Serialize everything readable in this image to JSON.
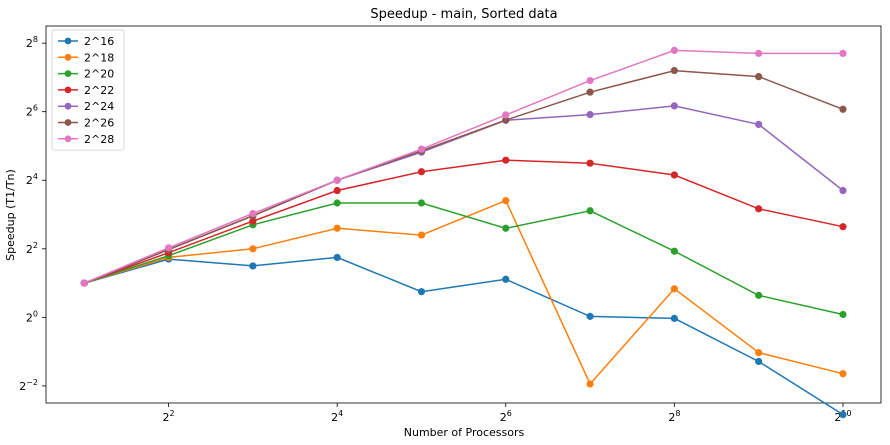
{
  "chart_data": {
    "type": "line",
    "title": "Speedup - main, Sorted data",
    "xlabel": "Number of Processors",
    "ylabel": "Speedup (T1/Tn)",
    "x_scale": "log2",
    "y_scale": "log2",
    "x": [
      2,
      4,
      8,
      16,
      32,
      64,
      128,
      256,
      512,
      1024
    ],
    "xlim": [
      1.46,
      1400
    ],
    "ylim": [
      0.177,
      362
    ],
    "x_ticks": [
      {
        "value": 4,
        "base": "2",
        "exp": "2"
      },
      {
        "value": 16,
        "base": "2",
        "exp": "4"
      },
      {
        "value": 64,
        "base": "2",
        "exp": "6"
      },
      {
        "value": 256,
        "base": "2",
        "exp": "8"
      },
      {
        "value": 1024,
        "base": "2",
        "exp": "10"
      }
    ],
    "y_ticks": [
      {
        "value": 0.25,
        "base": "2",
        "exp": "−2"
      },
      {
        "value": 1,
        "base": "2",
        "exp": "0"
      },
      {
        "value": 4,
        "base": "2",
        "exp": "2"
      },
      {
        "value": 16,
        "base": "2",
        "exp": "4"
      },
      {
        "value": 64,
        "base": "2",
        "exp": "6"
      },
      {
        "value": 256,
        "base": "2",
        "exp": "8"
      }
    ],
    "grid": false,
    "legend_position": "top-left",
    "series": [
      {
        "name": "2^16",
        "color": "#1f77b4",
        "values": [
          2.0,
          3.25,
          2.83,
          3.36,
          1.68,
          2.16,
          1.02,
          0.98,
          0.41,
          0.14
        ]
      },
      {
        "name": "2^18",
        "color": "#ff7f0e",
        "values": [
          2.0,
          3.36,
          4.0,
          6.06,
          5.28,
          10.6,
          0.26,
          1.78,
          0.49,
          0.32
        ]
      },
      {
        "name": "2^20",
        "color": "#2ca02c",
        "values": [
          2.0,
          3.48,
          6.5,
          10.1,
          10.1,
          6.06,
          8.63,
          3.81,
          1.56,
          1.06
        ]
      },
      {
        "name": "2^22",
        "color": "#d62728",
        "values": [
          2.0,
          3.7,
          7.0,
          13.0,
          19.0,
          24.0,
          22.6,
          17.8,
          8.98,
          6.25
        ]
      },
      {
        "name": "2^24",
        "color": "#9467bd",
        "values": [
          2.0,
          3.94,
          7.8,
          16.0,
          28.2,
          53.8,
          60.3,
          72.0,
          49.5,
          13.0
        ]
      },
      {
        "name": "2^26",
        "color": "#8c564b",
        "values": [
          2.0,
          3.94,
          7.8,
          16.0,
          29.0,
          54.0,
          95.0,
          147.0,
          130.0,
          67.2
        ]
      },
      {
        "name": "2^28",
        "color": "#e377c2",
        "values": [
          2.0,
          4.08,
          8.16,
          16.0,
          30.0,
          60.0,
          120.0,
          221.0,
          208.0,
          208.0
        ]
      }
    ]
  }
}
